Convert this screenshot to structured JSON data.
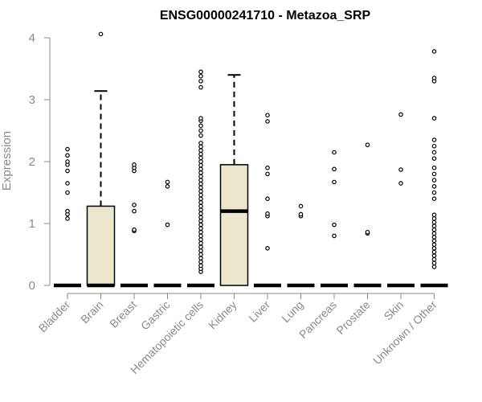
{
  "chart_data": {
    "type": "box",
    "title": "ENSG00000241710 - Metazoa_SRP",
    "ylabel": "Expression",
    "xlabel": "",
    "ylim": [
      0,
      4.2
    ],
    "yticks": [
      0,
      1,
      2,
      3,
      4
    ],
    "ytick_labels": [
      "0",
      "1",
      "2",
      "3",
      "4"
    ],
    "categories": [
      "Bladder",
      "Brain",
      "Breast",
      "Gastric",
      "Hematopoietic cells",
      "Kidney",
      "Liver",
      "Lung",
      "Pancreas",
      "Prostate",
      "Skin",
      "Unknown / Other"
    ],
    "colors": {
      "box_fill": "#ece6cd",
      "box_stroke": "#000000",
      "axis": "#8a8a8a"
    },
    "boxes": [
      {
        "category": "Bladder",
        "q1": 0,
        "median": 0,
        "q3": 0,
        "whisker_low": 0,
        "whisker_high": 0,
        "outliers": [
          1.08,
          1.15,
          1.2,
          1.5,
          1.65,
          1.85,
          1.95,
          2.0,
          2.1,
          2.2
        ]
      },
      {
        "category": "Brain",
        "q1": 0,
        "median": 0,
        "q3": 1.28,
        "whisker_low": 0,
        "whisker_high": 3.14,
        "outliers": [
          4.06
        ]
      },
      {
        "category": "Breast",
        "q1": 0,
        "median": 0,
        "q3": 0,
        "whisker_low": 0,
        "whisker_high": 0,
        "outliers": [
          0.88,
          0.9,
          1.2,
          1.3,
          1.85,
          1.9,
          1.95
        ]
      },
      {
        "category": "Gastric",
        "q1": 0,
        "median": 0,
        "q3": 0,
        "whisker_low": 0,
        "whisker_high": 0,
        "outliers": [
          0.98,
          1.6,
          1.67
        ]
      },
      {
        "category": "Hematopoietic cells",
        "q1": 0,
        "median": 0,
        "q3": 0,
        "whisker_low": 0,
        "whisker_high": 0,
        "outliers": [
          0.22,
          0.27,
          0.32,
          0.38,
          0.44,
          0.5,
          0.56,
          0.62,
          0.68,
          0.74,
          0.8,
          0.86,
          0.92,
          0.98,
          1.04,
          1.1,
          1.16,
          1.22,
          1.28,
          1.34,
          1.4,
          1.46,
          1.52,
          1.58,
          1.64,
          1.7,
          1.76,
          1.82,
          1.88,
          1.94,
          2.0,
          2.06,
          2.12,
          2.18,
          2.24,
          2.3,
          2.42,
          2.5,
          2.58,
          2.66,
          2.7,
          3.2,
          3.3,
          3.38,
          3.45
        ]
      },
      {
        "category": "Kidney",
        "q1": 0,
        "median": 1.2,
        "q3": 1.95,
        "whisker_low": 0,
        "whisker_high": 3.4,
        "outliers": []
      },
      {
        "category": "Liver",
        "q1": 0,
        "median": 0,
        "q3": 0,
        "whisker_low": 0,
        "whisker_high": 0,
        "outliers": [
          0.6,
          1.12,
          1.16,
          1.4,
          1.8,
          1.9,
          2.65,
          2.75
        ]
      },
      {
        "category": "Lung",
        "q1": 0,
        "median": 0,
        "q3": 0,
        "whisker_low": 0,
        "whisker_high": 0,
        "outliers": [
          1.12,
          1.15,
          1.28
        ]
      },
      {
        "category": "Pancreas",
        "q1": 0,
        "median": 0,
        "q3": 0,
        "whisker_low": 0,
        "whisker_high": 0,
        "outliers": [
          0.8,
          0.98,
          1.67,
          1.88,
          2.15
        ]
      },
      {
        "category": "Prostate",
        "q1": 0,
        "median": 0,
        "q3": 0,
        "whisker_low": 0,
        "whisker_high": 0,
        "outliers": [
          0.84,
          0.86,
          2.27
        ]
      },
      {
        "category": "Skin",
        "q1": 0,
        "median": 0,
        "q3": 0,
        "whisker_low": 0,
        "whisker_high": 0,
        "outliers": [
          1.65,
          1.87,
          2.76
        ]
      },
      {
        "category": "Unknown / Other",
        "q1": 0,
        "median": 0,
        "q3": 0,
        "whisker_low": 0,
        "whisker_high": 0,
        "outliers": [
          0.3,
          0.36,
          0.42,
          0.48,
          0.54,
          0.6,
          0.66,
          0.72,
          0.78,
          0.84,
          0.9,
          0.96,
          1.02,
          1.08,
          1.14,
          1.4,
          1.5,
          1.6,
          1.7,
          1.8,
          1.9,
          2.05,
          2.15,
          2.25,
          2.35,
          2.7,
          3.3,
          3.35,
          3.78
        ]
      }
    ]
  }
}
